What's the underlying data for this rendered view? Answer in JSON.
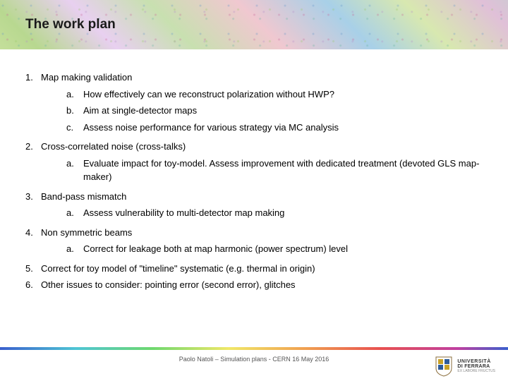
{
  "title": "The work plan",
  "items": [
    {
      "num": "1.",
      "text": "Map making validation",
      "subs": [
        {
          "m": "a.",
          "t": "How effectively can we reconstruct polarization without HWP?"
        },
        {
          "m": "b.",
          "t": "Aim at single-detector maps"
        },
        {
          "m": "c.",
          "t": "Assess noise performance for various strategy via MC analysis"
        }
      ]
    },
    {
      "num": "2.",
      "text": "Cross-correlated noise (cross-talks)",
      "subs": [
        {
          "m": "a.",
          "t": "Evaluate impact for toy-model. Assess improvement with dedicated treatment (devoted GLS map-maker)"
        }
      ]
    },
    {
      "num": "3.",
      "text": "Band-pass mismatch",
      "subs": [
        {
          "m": "a.",
          "t": "Assess vulnerability to multi-detector map making"
        }
      ]
    },
    {
      "num": "4.",
      "text": "Non symmetric beams",
      "subs": [
        {
          "m": "a.",
          "t": "Correct for leakage both at map harmonic (power spectrum) level"
        }
      ]
    },
    {
      "num": "5.",
      "text": "Correct for toy model of \"timeline\" systematic (e.g. thermal in origin)",
      "subs": []
    },
    {
      "num": "6.",
      "text": "Other issues to consider: pointing error (second error), glitches",
      "subs": []
    }
  ],
  "footer": "Paolo Natoli – Simulation plans - CERN 16 May 2016",
  "university": {
    "line1": "UNIVERSITÀ",
    "line2": "DI FERRARA",
    "line3": "EX LABORE FRUCTUS"
  }
}
